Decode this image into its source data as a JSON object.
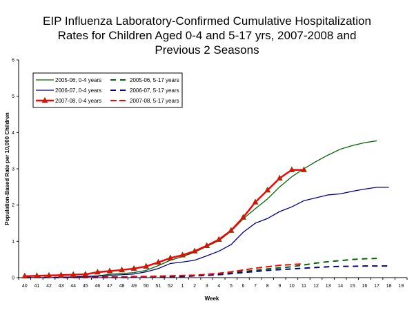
{
  "chart_data": {
    "type": "line",
    "title_lines": [
      "EIP Influenza Laboratory-Confirmed Cumulative Hospitalization",
      "Rates for Children Aged 0-4 and 5-17 yrs, 2007-2008 and",
      "Previous 2 Seasons"
    ],
    "xlabel": "Week",
    "ylabel": "Population-Based Rate per 10,000 Children",
    "ylim": [
      0,
      6
    ],
    "yticks": [
      "0",
      "1",
      "2",
      "3",
      "4",
      "5",
      "6"
    ],
    "categories": [
      "40",
      "41",
      "42",
      "43",
      "44",
      "45",
      "46",
      "47",
      "48",
      "49",
      "50",
      "51",
      "52",
      "1",
      "2",
      "3",
      "4",
      "5",
      "6",
      "7",
      "8",
      "9",
      "10",
      "11",
      "12",
      "13",
      "14",
      "15",
      "16",
      "17",
      "18",
      "19"
    ],
    "grid": false,
    "legend_position": "top-left",
    "series": [
      {
        "name": "2005-06, 0-4 years",
        "color": "#006400",
        "dash": false,
        "marker": false,
        "values": [
          0,
          0,
          0,
          0.01,
          0.02,
          0.03,
          0.05,
          0.09,
          0.11,
          0.14,
          0.2,
          0.33,
          0.48,
          0.58,
          0.7,
          0.86,
          1.02,
          1.28,
          1.62,
          1.9,
          2.17,
          2.5,
          2.78,
          3.0,
          3.2,
          3.38,
          3.54,
          3.64,
          3.72,
          3.77,
          null,
          null
        ]
      },
      {
        "name": "2006-07, 0-4 years",
        "color": "#000080",
        "dash": false,
        "marker": false,
        "values": [
          0,
          0,
          0,
          0.01,
          0.02,
          0.03,
          0.04,
          0.06,
          0.08,
          0.1,
          0.16,
          0.25,
          0.39,
          0.43,
          0.48,
          0.6,
          0.73,
          0.91,
          1.25,
          1.5,
          1.63,
          1.82,
          1.95,
          2.12,
          2.2,
          2.28,
          2.31,
          2.38,
          2.44,
          2.49,
          2.49,
          null
        ]
      },
      {
        "name": "2007-08, 0-4 years",
        "color": "#FF0000",
        "dash": false,
        "marker": true,
        "values": [
          0.04,
          0.05,
          0.06,
          0.07,
          0.08,
          0.09,
          0.15,
          0.18,
          0.21,
          0.25,
          0.31,
          0.42,
          0.54,
          0.62,
          0.73,
          0.88,
          1.05,
          1.3,
          1.66,
          2.08,
          2.41,
          2.74,
          2.97,
          2.97,
          null,
          null,
          null,
          null,
          null,
          null,
          null,
          null
        ]
      },
      {
        "name": "2005-06, 5-17 years",
        "color": "#006400",
        "dash": true,
        "marker": false,
        "values": [
          0,
          0,
          0,
          0,
          0,
          0,
          0,
          0,
          0,
          0.01,
          0.01,
          0.02,
          0.03,
          0.04,
          0.05,
          0.07,
          0.1,
          0.13,
          0.17,
          0.2,
          0.24,
          0.27,
          0.3,
          0.35,
          0.4,
          0.44,
          0.47,
          0.5,
          0.52,
          0.53,
          null,
          null
        ]
      },
      {
        "name": "2006-07, 5-17 years",
        "color": "#000080",
        "dash": true,
        "marker": false,
        "values": [
          0,
          0,
          0,
          0,
          0,
          0,
          0,
          0,
          0,
          0.01,
          0.01,
          0.02,
          0.02,
          0.03,
          0.05,
          0.06,
          0.08,
          0.11,
          0.14,
          0.17,
          0.2,
          0.22,
          0.24,
          0.26,
          0.28,
          0.3,
          0.31,
          0.31,
          0.32,
          0.32,
          0.32,
          null
        ]
      },
      {
        "name": "2007-08, 5-17 years",
        "color": "#FF0000",
        "dash": true,
        "marker": false,
        "values": [
          0.01,
          0.01,
          0.01,
          0.01,
          0.01,
          0.01,
          0.02,
          0.02,
          0.02,
          0.03,
          0.03,
          0.04,
          0.05,
          0.06,
          0.07,
          0.09,
          0.12,
          0.16,
          0.21,
          0.26,
          0.3,
          0.34,
          0.36,
          0.38,
          null,
          null,
          null,
          null,
          null,
          null,
          null,
          null
        ]
      }
    ]
  }
}
